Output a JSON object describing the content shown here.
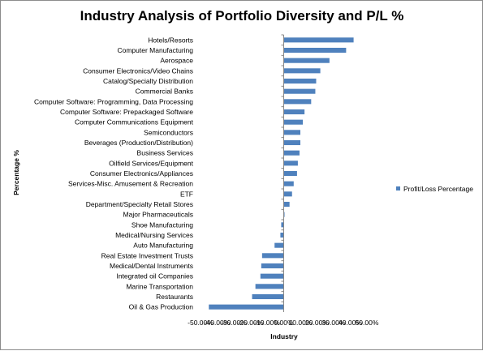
{
  "chart_data": {
    "type": "bar",
    "orientation": "horizontal",
    "title": "Industry Analysis of Portfolio Diversity and P/L %",
    "xlabel": "Industry",
    "ylabel": "Percentage %",
    "xlim": [
      -0.5,
      0.5
    ],
    "x_ticks": [
      -0.5,
      -0.4,
      -0.3,
      -0.2,
      -0.1,
      0.0,
      0.1,
      0.2,
      0.3,
      0.4,
      0.5
    ],
    "x_tick_labels": [
      "-50.00%",
      "-40.00%",
      "-30.00%",
      "-20.00%",
      "-10.00%",
      "0.00%",
      "10.00%",
      "20.00%",
      "30.00%",
      "40.00%",
      "50.00%"
    ],
    "grid": false,
    "legend_position": "right",
    "categories": [
      "Hotels/Resorts",
      "Computer Manufacturing",
      "Aerospace",
      "Consumer Electronics/Video Chains",
      "Catalog/Specialty Distribution",
      "Commercial Banks",
      "Computer Software: Programming, Data Processing",
      "Computer Software: Prepackaged Software",
      "Computer Communications Equipment",
      "Semiconductors",
      "Beverages (Production/Distribution)",
      "Business Services",
      "Oilfield Services/Equipment",
      "Consumer Electronics/Appliances",
      "Services-Misc. Amusement & Recreation",
      "ETF",
      "Department/Specialty Retail Stores",
      "Major Pharmaceuticals",
      "Shoe Manufacturing",
      "Medical/Nursing Services",
      "Auto Manufacturing",
      "Real Estate Investment Trusts",
      "Medical/Dental Instruments",
      "Integrated oil Companies",
      "Marine Transportation",
      "Restaurants",
      "Oil & Gas Production"
    ],
    "series": [
      {
        "name": "Profit/Loss Percentage",
        "color": "#4f81bd",
        "values": [
          0.42,
          0.375,
          0.275,
          0.22,
          0.195,
          0.19,
          0.165,
          0.125,
          0.115,
          0.1,
          0.1,
          0.095,
          0.085,
          0.08,
          0.06,
          0.05,
          0.035,
          0.005,
          -0.015,
          -0.02,
          -0.055,
          -0.13,
          -0.135,
          -0.14,
          -0.17,
          -0.19,
          -0.45
        ]
      }
    ]
  }
}
